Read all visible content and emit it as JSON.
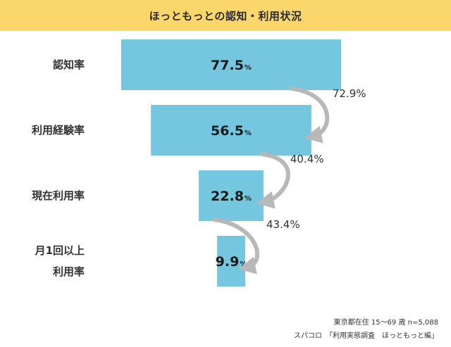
{
  "header": {
    "title": "ほっともっとの認知・利用状況"
  },
  "chart_data": {
    "type": "funnel",
    "unit": "%",
    "stages": [
      {
        "label": [
          "認知率"
        ],
        "value": 77.5
      },
      {
        "label": [
          "利用経験率"
        ],
        "value": 56.5
      },
      {
        "label": [
          "現在利用率"
        ],
        "value": 22.8
      },
      {
        "label": [
          "月1回以上",
          "利用率"
        ],
        "value": 9.9
      }
    ],
    "conversions": [
      "72.9%",
      "40.4%",
      "43.4%"
    ],
    "colors": {
      "bar": "#74c7df",
      "arrow": "#b8b8b8"
    }
  },
  "footer": {
    "line1": "東京都在住 15〜69 歳 n=5,088",
    "line2": "スパコロ　「利用実態調査　ほっともっと編」"
  }
}
